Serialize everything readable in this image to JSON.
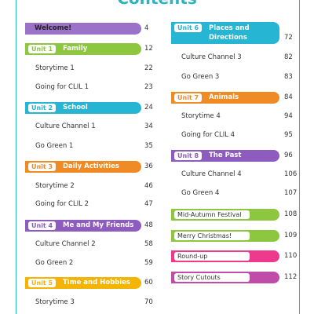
{
  "title": "Contents",
  "left": [
    {
      "kind": "plain",
      "label": "Welcome!",
      "page": 4,
      "color": "#9b72c8"
    },
    {
      "kind": "unit",
      "unit": "Unit 1",
      "label": "Family",
      "page": 12,
      "color": "#8dc63f"
    },
    {
      "kind": "sub",
      "label": "Storytime 1",
      "page": 22
    },
    {
      "kind": "sub",
      "label": "Going for CLIL 1",
      "page": 23
    },
    {
      "kind": "unit",
      "unit": "Unit 2",
      "label": "School",
      "page": 24,
      "color": "#26b5d3"
    },
    {
      "kind": "sub",
      "label": "Culture Channel 1",
      "page": 34
    },
    {
      "kind": "sub",
      "label": "Go Green 1",
      "page": 35
    },
    {
      "kind": "unit",
      "unit": "Unit 3",
      "label": "Daily Activities",
      "page": 36,
      "color": "#f08a24"
    },
    {
      "kind": "sub",
      "label": "Storytime 2",
      "page": 46
    },
    {
      "kind": "sub",
      "label": "Going for CLIL 2",
      "page": 47
    },
    {
      "kind": "unit",
      "unit": "Unit 4",
      "label": "Me and My Friends",
      "page": 48,
      "color": "#8e5bbf"
    },
    {
      "kind": "sub",
      "label": "Culture Channel 2",
      "page": 58
    },
    {
      "kind": "sub",
      "label": "Go Green 2",
      "page": 59
    },
    {
      "kind": "unit",
      "unit": "Unit 5",
      "label": "Time and Hobbies",
      "page": 60,
      "color": "#f5b400"
    },
    {
      "kind": "sub",
      "label": "Storytime 3",
      "page": 70
    }
  ],
  "right": [
    {
      "kind": "unit2",
      "unit": "Unit 6",
      "label": "Places and Directions",
      "page": 72,
      "color": "#26b5d3"
    },
    {
      "kind": "sub",
      "label": "Culture Channel 3",
      "page": 82
    },
    {
      "kind": "sub",
      "label": "Go Green 3",
      "page": 83
    },
    {
      "kind": "unit",
      "unit": "Unit 7",
      "label": "Animals",
      "page": 84,
      "color": "#f08a24"
    },
    {
      "kind": "sub",
      "label": "Storytime 4",
      "page": 94
    },
    {
      "kind": "sub",
      "label": "Going for CLIL 4",
      "page": 95
    },
    {
      "kind": "unit",
      "unit": "Unit 8",
      "label": "The Past",
      "page": 96,
      "color": "#8e5bbf"
    },
    {
      "kind": "sub",
      "label": "Culture Channel 4",
      "page": 106
    },
    {
      "kind": "sub",
      "label": "Go Green 4",
      "page": 107
    },
    {
      "kind": "special",
      "label": "Mid-Autumn Festival",
      "page": 108,
      "color": "#8dc63f"
    },
    {
      "kind": "special",
      "label": "Merry Christmas!",
      "page": 109,
      "color": "#8dc63f"
    },
    {
      "kind": "special",
      "label": "Round-up",
      "page": 110,
      "color": "#ee3a8c"
    },
    {
      "kind": "special",
      "label": "Story Cutouts",
      "page": 112,
      "color": "#c04ba8"
    }
  ]
}
